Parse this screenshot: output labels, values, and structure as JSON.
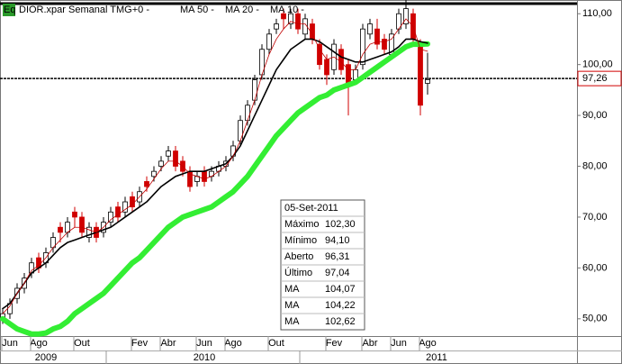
{
  "chart_data": {
    "type": "candlestick",
    "legend": {
      "badge": "Eq",
      "instrument": "DIOR.xpar Semanal TMG+0 -"
    },
    "categories": [
      null,
      "Jun",
      null,
      null,
      null,
      "Ago",
      null,
      null,
      null,
      null,
      null,
      "Out",
      null,
      null,
      null,
      null,
      null,
      null,
      null,
      "Fev",
      null,
      null,
      null,
      "Abr",
      null,
      null,
      null,
      null,
      "Jun",
      null,
      null,
      null,
      "Ago",
      null,
      null,
      null,
      null,
      null,
      "Out",
      null,
      null,
      null,
      null,
      null,
      null,
      null,
      "Fev",
      null,
      null,
      null,
      null,
      "Abr",
      null,
      null,
      null,
      "Jun",
      null,
      null,
      null,
      "Ago"
    ],
    "years": [
      null,
      null,
      null,
      null,
      null,
      null,
      "2009",
      null,
      null,
      null,
      null,
      null,
      null,
      null,
      null,
      null,
      null,
      null,
      null,
      null,
      null,
      null,
      null,
      null,
      null,
      null,
      null,
      null,
      "2010",
      null,
      null,
      null,
      null,
      null,
      null,
      null,
      null,
      null,
      null,
      null,
      null,
      null,
      null,
      null,
      null,
      null,
      null,
      null,
      null,
      null,
      null,
      null,
      null,
      null,
      null,
      null,
      null,
      null,
      null,
      "2011"
    ],
    "open": [
      50,
      51,
      54,
      56,
      59,
      62,
      61,
      64,
      68,
      67,
      71,
      70,
      66,
      68,
      67,
      69,
      72,
      71,
      74,
      73,
      77,
      78,
      80,
      82,
      83,
      81,
      79,
      77,
      79,
      78,
      79,
      80,
      82,
      85,
      89,
      93,
      98,
      103,
      107,
      110,
      108,
      110,
      106,
      108,
      104,
      101,
      99,
      103,
      100,
      97,
      100,
      106,
      107,
      105,
      102,
      107,
      108,
      110,
      104,
      96.31
    ],
    "high": [
      52,
      54,
      57,
      59,
      62,
      63,
      64,
      67,
      69,
      70,
      72,
      71,
      69,
      69,
      70,
      72,
      73,
      74,
      75,
      76,
      78,
      80,
      82,
      84,
      84,
      82,
      80,
      79,
      80,
      80,
      81,
      82,
      85,
      90,
      93,
      98,
      104,
      107,
      109,
      111,
      111,
      111,
      110,
      109,
      105,
      102,
      105,
      104,
      101,
      100,
      108,
      109,
      109,
      106,
      107,
      111,
      113,
      111,
      105,
      102.3
    ],
    "low": [
      49,
      50,
      53,
      55,
      58,
      59,
      60,
      63,
      65,
      66,
      68,
      66,
      65,
      65,
      66,
      68,
      69,
      70,
      71,
      72,
      75,
      77,
      79,
      81,
      79,
      78,
      75,
      76,
      76,
      77,
      78,
      79,
      81,
      84,
      88,
      92,
      97,
      102,
      106,
      107,
      107,
      106,
      105,
      104,
      99,
      96,
      98,
      98,
      90,
      96,
      99,
      105,
      103,
      102,
      101,
      106,
      107,
      104,
      90,
      94.1
    ],
    "close": [
      51,
      53,
      56,
      58,
      61,
      60,
      63,
      66,
      67,
      69,
      70,
      67,
      68,
      66,
      69,
      71,
      70,
      73,
      72,
      75,
      76,
      79,
      81,
      83,
      80,
      79,
      76,
      78,
      77,
      79,
      80,
      81,
      84,
      89,
      92,
      97,
      103,
      106,
      108,
      109,
      110,
      107,
      109,
      105,
      100,
      98,
      104,
      99,
      96,
      99,
      107,
      108,
      104,
      103,
      106,
      110,
      111,
      105,
      92,
      97.04
    ],
    "up_color": "#ffffff",
    "down_color": "#d00000",
    "series": [
      {
        "name": "MA 50 -",
        "color": "#33ee33",
        "width": 6,
        "values": [
          50,
          49,
          48,
          47.5,
          47,
          47,
          47.2,
          48,
          48.5,
          49.5,
          51,
          52,
          53,
          54,
          55,
          56.5,
          58,
          59.5,
          61,
          62,
          63.5,
          65,
          66.5,
          68,
          69,
          70,
          70.5,
          71,
          71.5,
          72,
          73,
          74,
          75,
          76.5,
          78,
          80,
          82,
          84,
          86,
          87.5,
          89,
          90.5,
          91.5,
          92.5,
          93.5,
          94,
          95,
          95.5,
          96,
          96.5,
          97.5,
          98.5,
          99.5,
          100.5,
          101.5,
          102.5,
          103.5,
          104,
          104,
          104.07
        ]
      },
      {
        "name": "MA 20 -",
        "color": "#000000",
        "width": 1.6,
        "values": [
          52,
          53,
          55,
          57,
          59,
          60,
          61,
          62.5,
          64,
          65,
          65.5,
          66,
          66.5,
          67,
          67.5,
          68,
          69,
          70,
          71,
          72,
          73,
          74.5,
          76,
          77,
          78,
          78.5,
          79,
          79,
          79,
          79.5,
          80,
          80.5,
          82,
          84,
          87,
          90,
          93,
          96,
          99,
          101,
          103,
          104,
          105,
          105,
          104.5,
          103.5,
          102.5,
          101.5,
          101,
          100.5,
          100.5,
          101,
          101.5,
          102,
          102.5,
          103.5,
          105,
          105,
          104.5,
          104.22
        ]
      },
      {
        "name": "MA 10 -",
        "color": "#c00000",
        "width": 0.8,
        "values": [
          51,
          52.5,
          55,
          57,
          59.5,
          60.5,
          62,
          64,
          65.5,
          67,
          68,
          68,
          67.5,
          67,
          68,
          69.5,
          70.5,
          71.5,
          72.5,
          74,
          75.5,
          77.5,
          79.5,
          81,
          81,
          80,
          78.5,
          78,
          77.5,
          78,
          79,
          80,
          82,
          85,
          89,
          93,
          98,
          102,
          105,
          107,
          108.5,
          108,
          108,
          106,
          103,
          101,
          101.5,
          100.5,
          99,
          99,
          102,
          104,
          104.5,
          104.5,
          105,
          107,
          109,
          107.5,
          103,
          102.62
        ]
      }
    ],
    "hlines": [
      {
        "value": 112
      },
      {
        "value": 97.26,
        "label": "97,26"
      }
    ],
    "ylim": [
      46.6,
      112.7
    ],
    "yticks": [
      {
        "value": 50,
        "label": "50,00"
      },
      {
        "value": 60,
        "label": "60,00"
      },
      {
        "value": 70,
        "label": "70,00"
      },
      {
        "value": 80,
        "label": "80,00"
      },
      {
        "value": 90,
        "label": "90,00"
      },
      {
        "value": 100,
        "label": "100,00"
      },
      {
        "value": 110,
        "label": "110,00"
      }
    ],
    "info_box": {
      "date": "05-Set-2011",
      "rows": [
        {
          "label": "Máximo",
          "value": "102,30",
          "color": "#000000"
        },
        {
          "label": "Mínimo",
          "value": "94,10",
          "color": "#000000"
        },
        {
          "label": "Aberto",
          "value": "96,31",
          "color": "#000000"
        },
        {
          "label": "Último",
          "value": "97,04",
          "color": "#000000"
        },
        {
          "label": "MA",
          "value": "104,07",
          "color": "#33dd33"
        },
        {
          "label": "MA",
          "value": "104,22",
          "color": "#000000"
        },
        {
          "label": "MA",
          "value": "102,62",
          "color": "#c00000"
        }
      ]
    }
  }
}
